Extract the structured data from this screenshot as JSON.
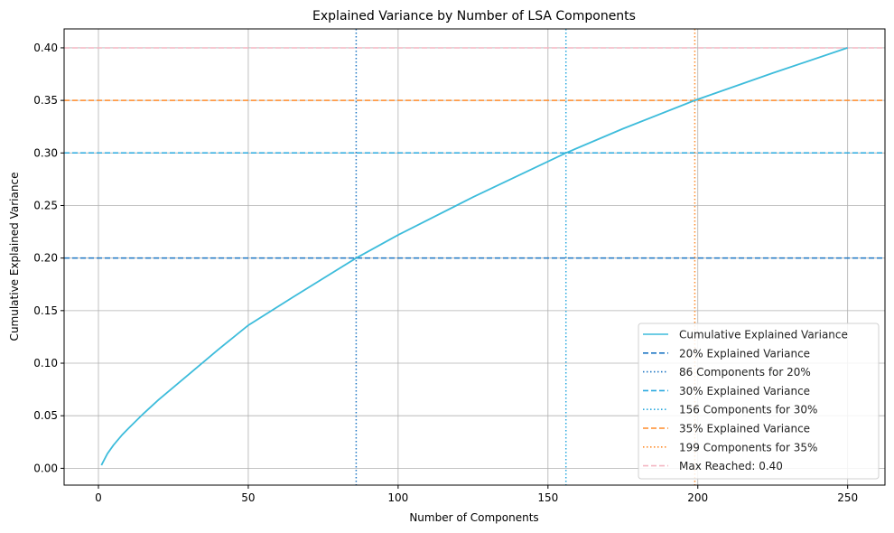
{
  "chart_data": {
    "type": "line",
    "title": "Explained Variance by Number of LSA Components",
    "xlabel": "Number of Components",
    "ylabel": "Cumulative Explained Variance",
    "xlim": [
      -11.45,
      262.45
    ],
    "ylim": [
      -0.016,
      0.418
    ],
    "grid": true,
    "legend_placement": "lower-right",
    "xticks": [
      0,
      50,
      100,
      150,
      200,
      250
    ],
    "xtick_labels": [
      "0",
      "50",
      "100",
      "150",
      "200",
      "250"
    ],
    "yticks": [
      0,
      0.05,
      0.1,
      0.15,
      0.2,
      0.25,
      0.3,
      0.35,
      0.4
    ],
    "ytick_labels": [
      "0.00",
      "0.05",
      "0.10",
      "0.15",
      "0.20",
      "0.25",
      "0.30",
      "0.35",
      "0.40"
    ],
    "series": [
      {
        "name": "Cumulative Explained Variance",
        "color": "#3dbcdb",
        "style": "solid",
        "x": [
          1,
          3,
          5,
          8,
          10,
          15,
          20,
          30,
          40,
          50,
          65,
          86,
          100,
          125,
          156,
          175,
          199,
          225,
          250
        ],
        "y": [
          0.003,
          0.014,
          0.022,
          0.032,
          0.038,
          0.052,
          0.065,
          0.089,
          0.113,
          0.136,
          0.163,
          0.2,
          0.222,
          0.258,
          0.3,
          0.323,
          0.35,
          0.376,
          0.4
        ]
      }
    ],
    "reference_lines": [
      {
        "name": "20% Explained Variance",
        "orientation": "horizontal",
        "value": 0.2,
        "color": "#1f77c4",
        "style": "dashed"
      },
      {
        "name": "86 Components for 20%",
        "orientation": "vertical",
        "value": 86,
        "color": "#1f77c4",
        "style": "dotted"
      },
      {
        "name": "30% Explained Variance",
        "orientation": "horizontal",
        "value": 0.3,
        "color": "#2aa9df",
        "style": "dashed"
      },
      {
        "name": "156 Components for 30%",
        "orientation": "vertical",
        "value": 156,
        "color": "#2aa9df",
        "style": "dotted"
      },
      {
        "name": "35% Explained Variance",
        "orientation": "horizontal",
        "value": 0.35,
        "color": "#ff8c2a",
        "style": "dashed"
      },
      {
        "name": "199 Components for 35%",
        "orientation": "vertical",
        "value": 199,
        "color": "#ff8c2a",
        "style": "dotted"
      },
      {
        "name": "Max Reached: 0.40",
        "orientation": "horizontal",
        "value": 0.4,
        "color": "#f4b6c2",
        "style": "dashed"
      }
    ]
  }
}
